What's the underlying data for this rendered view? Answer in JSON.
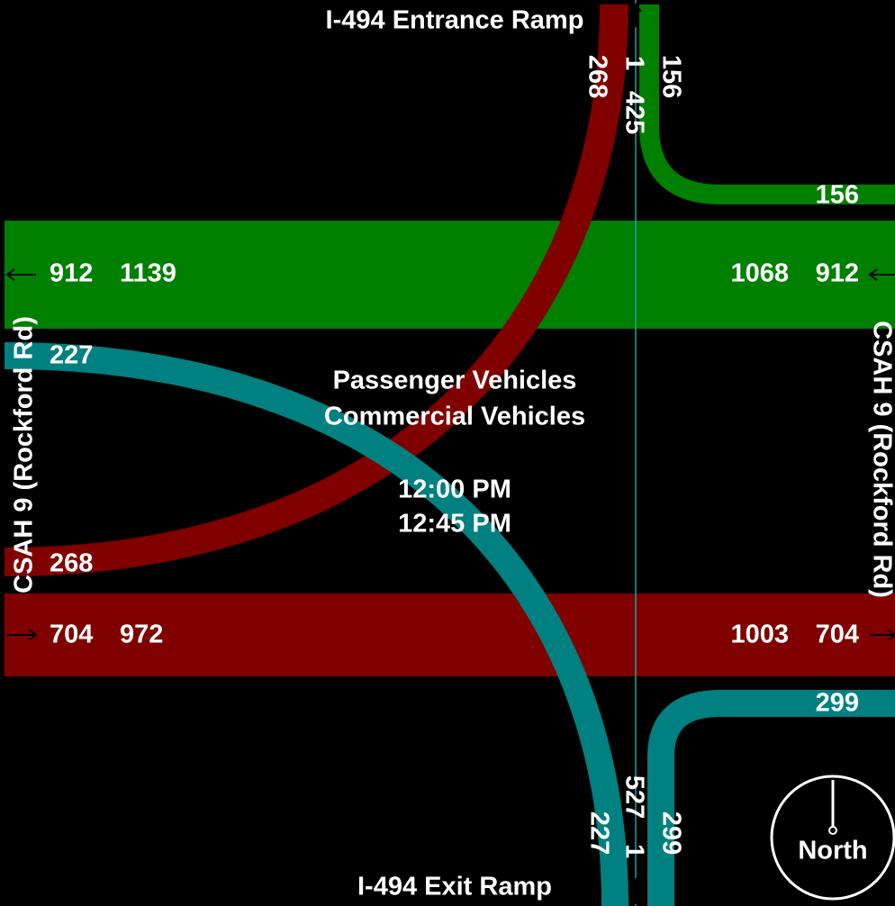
{
  "roads": {
    "north": "I-494 Entrance Ramp",
    "south": "I-494 Exit Ramp",
    "west": "CSAH 9 (Rockford Rd)",
    "east": "CSAH 9 (Rockford Rd)"
  },
  "legend": {
    "line1": "Passenger Vehicles",
    "line2": "Commercial Vehicles",
    "time_start": "12:00 PM",
    "time_end": "12:45 PM"
  },
  "compass": "North",
  "north": {
    "left_turn_out": 268,
    "total_a": 1,
    "total_b": 425,
    "right_turn_in": 156
  },
  "east": {
    "right_turn": 156,
    "through_a": 1068,
    "through_b": 912,
    "red_a": 1003,
    "red_b": 704,
    "teal": 299
  },
  "west": {
    "through_a": 912,
    "through_b": 1139,
    "teal": 227,
    "red_turn": 268,
    "red_a": 704,
    "red_b": 972
  },
  "south": {
    "left": 227,
    "total_a": 1,
    "total_b": 527,
    "right": 299
  }
}
